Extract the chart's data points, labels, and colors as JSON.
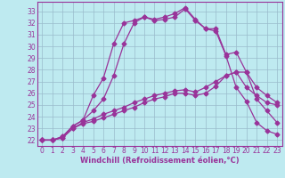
{
  "xlabel": "Windchill (Refroidissement éolien,°C)",
  "background_color": "#beeaf0",
  "grid_color": "#99bbcc",
  "line_color": "#993399",
  "spine_color": "#993399",
  "xlim": [
    -0.5,
    23.5
  ],
  "ylim": [
    21.5,
    33.8
  ],
  "xticks": [
    0,
    1,
    2,
    3,
    4,
    5,
    6,
    7,
    8,
    9,
    10,
    11,
    12,
    13,
    14,
    15,
    16,
    17,
    18,
    19,
    20,
    21,
    22,
    23
  ],
  "yticks": [
    22,
    23,
    24,
    25,
    26,
    27,
    28,
    29,
    30,
    31,
    32,
    33
  ],
  "series": [
    [
      22.0,
      22.0,
      22.2,
      23.0,
      23.4,
      23.6,
      23.9,
      24.2,
      24.5,
      24.8,
      25.2,
      25.5,
      25.7,
      26.0,
      26.0,
      25.8,
      26.0,
      26.6,
      27.5,
      27.8,
      26.5,
      25.8,
      25.2,
      25.0
    ],
    [
      22.0,
      22.0,
      22.2,
      23.0,
      23.5,
      23.8,
      24.2,
      24.5,
      24.8,
      25.2,
      25.5,
      25.8,
      26.0,
      26.2,
      26.3,
      26.1,
      26.5,
      27.0,
      27.5,
      27.8,
      27.8,
      26.5,
      25.8,
      25.2
    ],
    [
      22.0,
      22.0,
      22.3,
      23.2,
      23.7,
      24.5,
      25.5,
      27.5,
      30.2,
      32.0,
      32.5,
      32.2,
      32.3,
      32.5,
      33.2,
      32.2,
      31.5,
      31.3,
      29.2,
      26.5,
      25.3,
      23.5,
      22.8,
      22.5
    ],
    [
      22.0,
      22.0,
      22.3,
      23.2,
      23.7,
      25.8,
      27.3,
      30.2,
      32.0,
      32.2,
      32.5,
      32.3,
      32.5,
      32.8,
      33.3,
      32.3,
      31.5,
      31.5,
      29.3,
      29.5,
      27.8,
      25.5,
      24.5,
      23.5
    ]
  ],
  "marker": "D",
  "markersize": 2.5,
  "linewidth": 0.9,
  "tick_fontsize": 5.5,
  "xlabel_fontsize": 6.0
}
